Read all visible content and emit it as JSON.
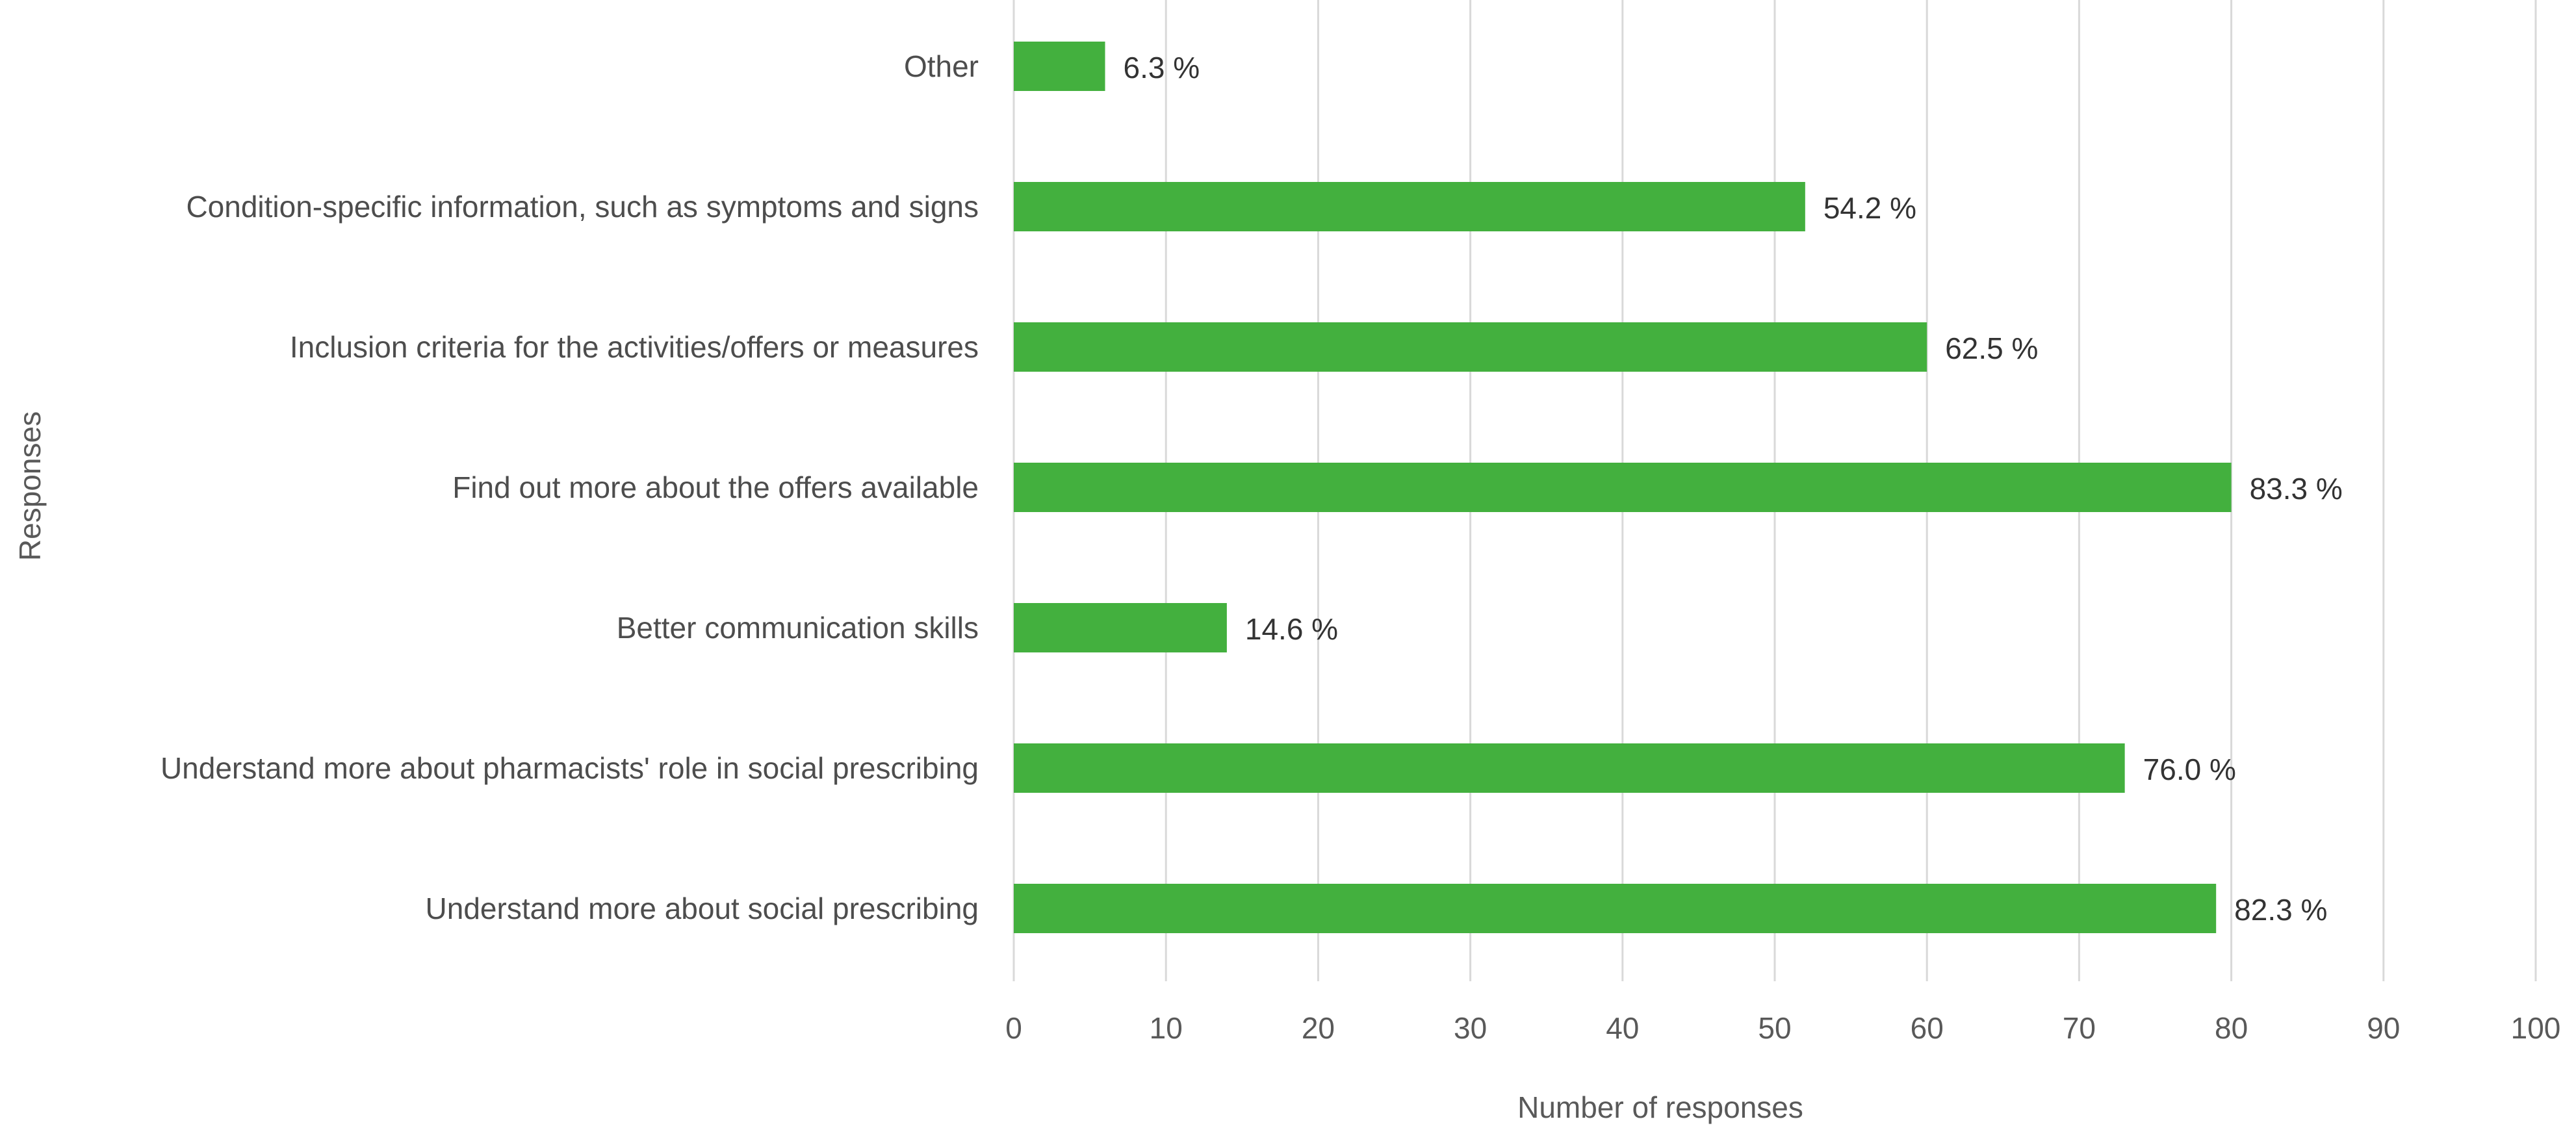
{
  "chart_data": {
    "type": "bar",
    "orientation": "horizontal",
    "title": "",
    "xlabel": "Number of responses",
    "ylabel": "Responses",
    "xlim": [
      0,
      100
    ],
    "xticks": [
      0,
      10,
      20,
      30,
      40,
      50,
      60,
      70,
      80,
      90,
      100
    ],
    "grid": true,
    "bar_color": "#43B03E",
    "grid_color": "#D9D9D9",
    "categories": [
      "Other",
      "Condition-specific information, such as symptoms and signs",
      "Inclusion criteria for the activities/offers or measures",
      "Find out more about the offers available",
      "Better communication skills",
      "Understand more about pharmacists' role in social prescribing",
      "Understand more about social prescribing"
    ],
    "values": [
      6,
      52,
      60,
      80,
      14,
      73,
      79
    ],
    "data_labels": [
      "6.3 %",
      "54.2 %",
      "62.5 %",
      "83.3 %",
      "14.6 %",
      "76.0 %",
      "82.3 %"
    ]
  }
}
